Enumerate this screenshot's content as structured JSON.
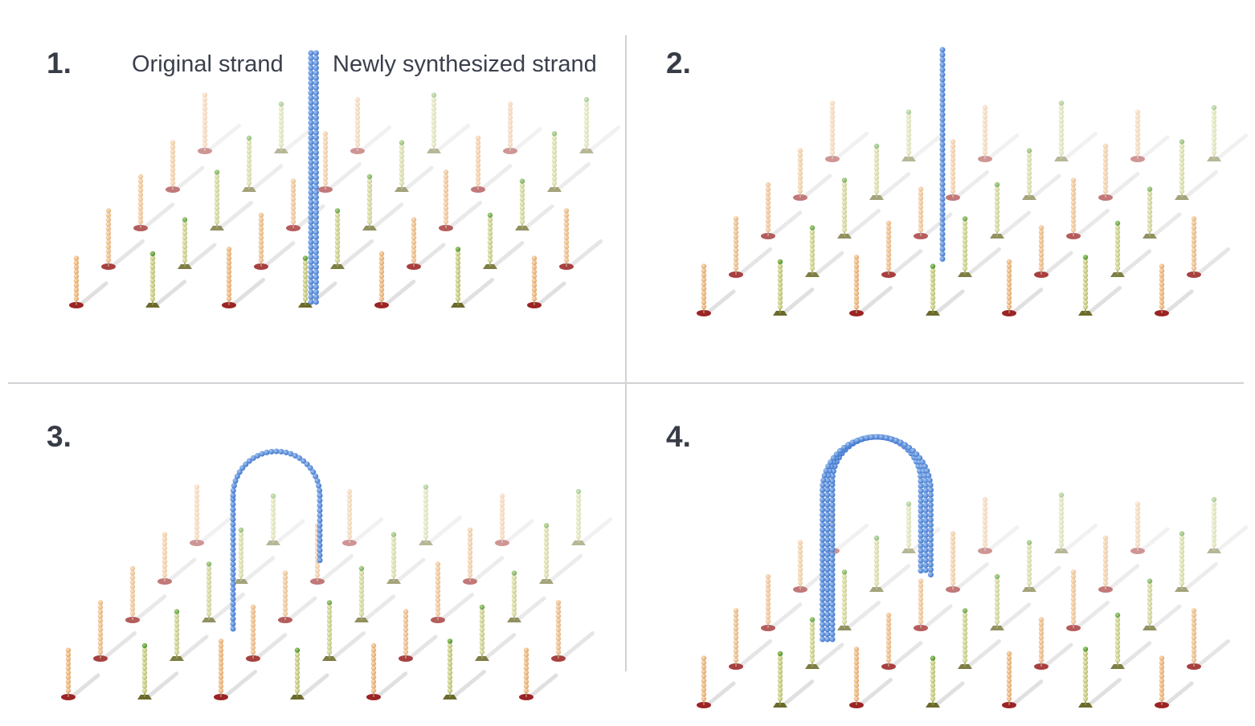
{
  "panels": [
    {
      "number": "1.",
      "stage": "straight"
    },
    {
      "number": "2.",
      "stage": "straight"
    },
    {
      "number": "3.",
      "stage": "arch"
    },
    {
      "number": "4.",
      "stage": "arch-double"
    }
  ],
  "labels": {
    "original_strand": "Original strand",
    "new_strand": "Newly synthesized strand"
  },
  "colors": {
    "original_bead": "#e2a76a",
    "original_base": "#9c2424",
    "new_bead": "#b7bd6a",
    "new_tip": "#4f8f2a",
    "new_base": "#6b6a2a",
    "blue_bead": "#3f76cc",
    "text": "#373c47",
    "divider": "#d2d2d6",
    "shadow": "#c8c8c8"
  }
}
